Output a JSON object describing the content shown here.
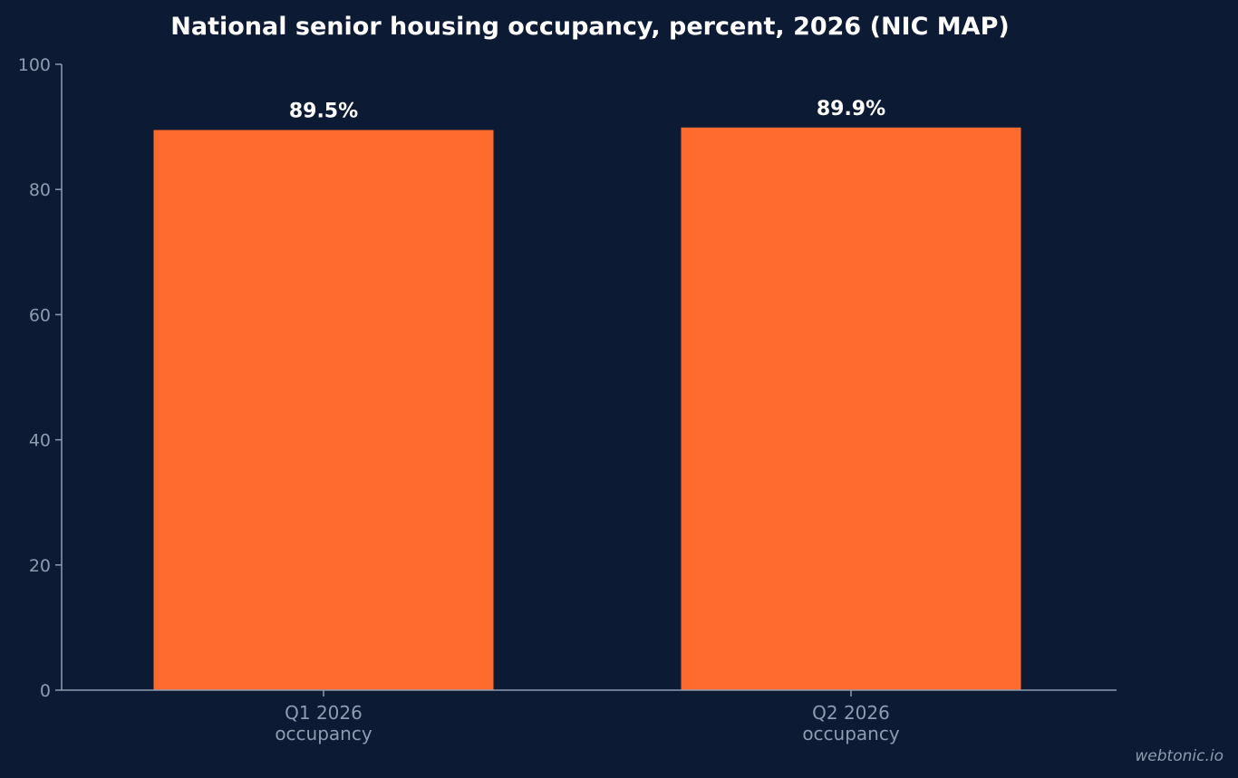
{
  "chart_data": {
    "type": "bar",
    "title": "National senior housing occupancy, percent, 2026 (NIC MAP)",
    "xlabel": "",
    "ylabel": "",
    "categories": [
      [
        "Q1 2026",
        "occupancy"
      ],
      [
        "Q2 2026",
        "occupancy"
      ]
    ],
    "values": [
      89.5,
      89.9
    ],
    "data_labels": [
      "89.5%",
      "89.9%"
    ],
    "ylim": [
      0,
      100
    ],
    "yticks": [
      0,
      20,
      40,
      60,
      80,
      100
    ],
    "grid": false,
    "legend": "none",
    "colors": {
      "background": "#0c1b33",
      "bar": "#ff6b2e",
      "axis": "#8e9bb0",
      "text": "#ffffff"
    }
  },
  "watermark": "webtonic.io"
}
